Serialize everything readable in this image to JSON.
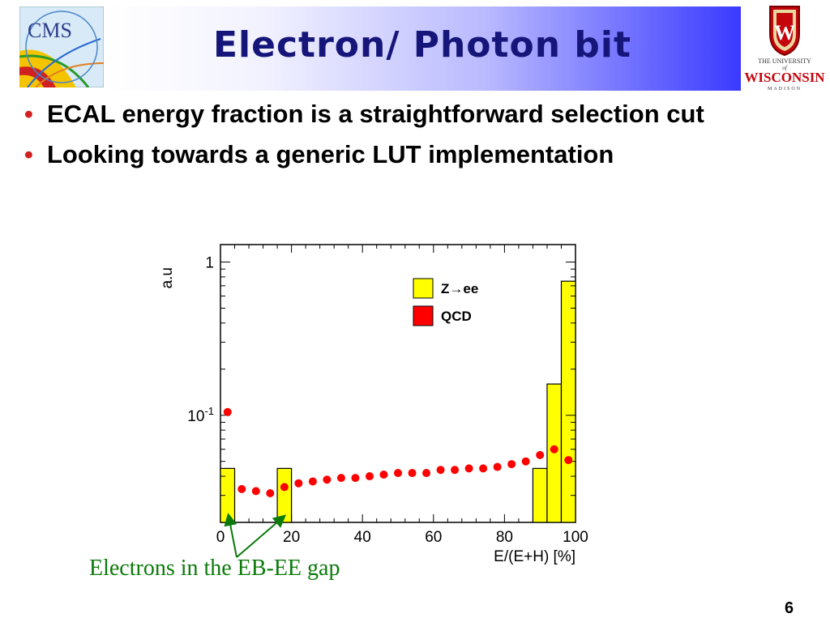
{
  "slide": {
    "title": "Electron/ Photon bit",
    "cms_logo_text": "CMS",
    "uw_logo": {
      "line1": "THE UNIVERSITY",
      "line2": "of",
      "line3": "WISCONSIN",
      "line4": "MADISON"
    },
    "bullets": [
      "ECAL energy fraction is a straightforward selection cut",
      "Looking towards a generic LUT implementation"
    ],
    "annotation": "Electrons in the EB-EE gap",
    "page_number": "6",
    "colors": {
      "bullet": "#d32020",
      "annotation": "#0a7a0a",
      "title": "#16167a"
    }
  },
  "chart_data": {
    "type": "bar",
    "title": "",
    "xlabel": "E/(E+H) [%]",
    "ylabel": "a.u",
    "xlim": [
      0,
      100
    ],
    "ylim": [
      0.02,
      1.3
    ],
    "yscale": "log",
    "xticks": [
      "0",
      "20",
      "40",
      "60",
      "80",
      "100"
    ],
    "yticks": [
      {
        "label": "1",
        "value": 1
      },
      {
        "label": "10",
        "exp": "-1",
        "value": 0.1
      }
    ],
    "legend": [
      {
        "name": "Z→ee",
        "color": "#ffff00"
      },
      {
        "name": "QCD",
        "color": "#ff0000"
      }
    ],
    "series": [
      {
        "name": "Z→ee",
        "style": "histogram",
        "color": "#ffff00",
        "bins": [
          {
            "x0": 0,
            "x1": 4,
            "y": 0.045
          },
          {
            "x0": 16,
            "x1": 20,
            "y": 0.045
          },
          {
            "x0": 88,
            "x1": 92,
            "y": 0.045
          },
          {
            "x0": 92,
            "x1": 96,
            "y": 0.16
          },
          {
            "x0": 96,
            "x1": 100,
            "y": 0.75
          }
        ]
      },
      {
        "name": "QCD",
        "style": "markers",
        "color": "#ff0000",
        "x": [
          2,
          6,
          10,
          14,
          18,
          22,
          26,
          30,
          34,
          38,
          42,
          46,
          50,
          54,
          58,
          62,
          66,
          70,
          74,
          78,
          82,
          86,
          90,
          94,
          98
        ],
        "y": [
          0.105,
          0.033,
          0.032,
          0.031,
          0.034,
          0.036,
          0.037,
          0.038,
          0.039,
          0.039,
          0.04,
          0.041,
          0.042,
          0.042,
          0.042,
          0.044,
          0.044,
          0.045,
          0.045,
          0.046,
          0.048,
          0.05,
          0.055,
          0.06,
          0.051
        ]
      }
    ]
  }
}
